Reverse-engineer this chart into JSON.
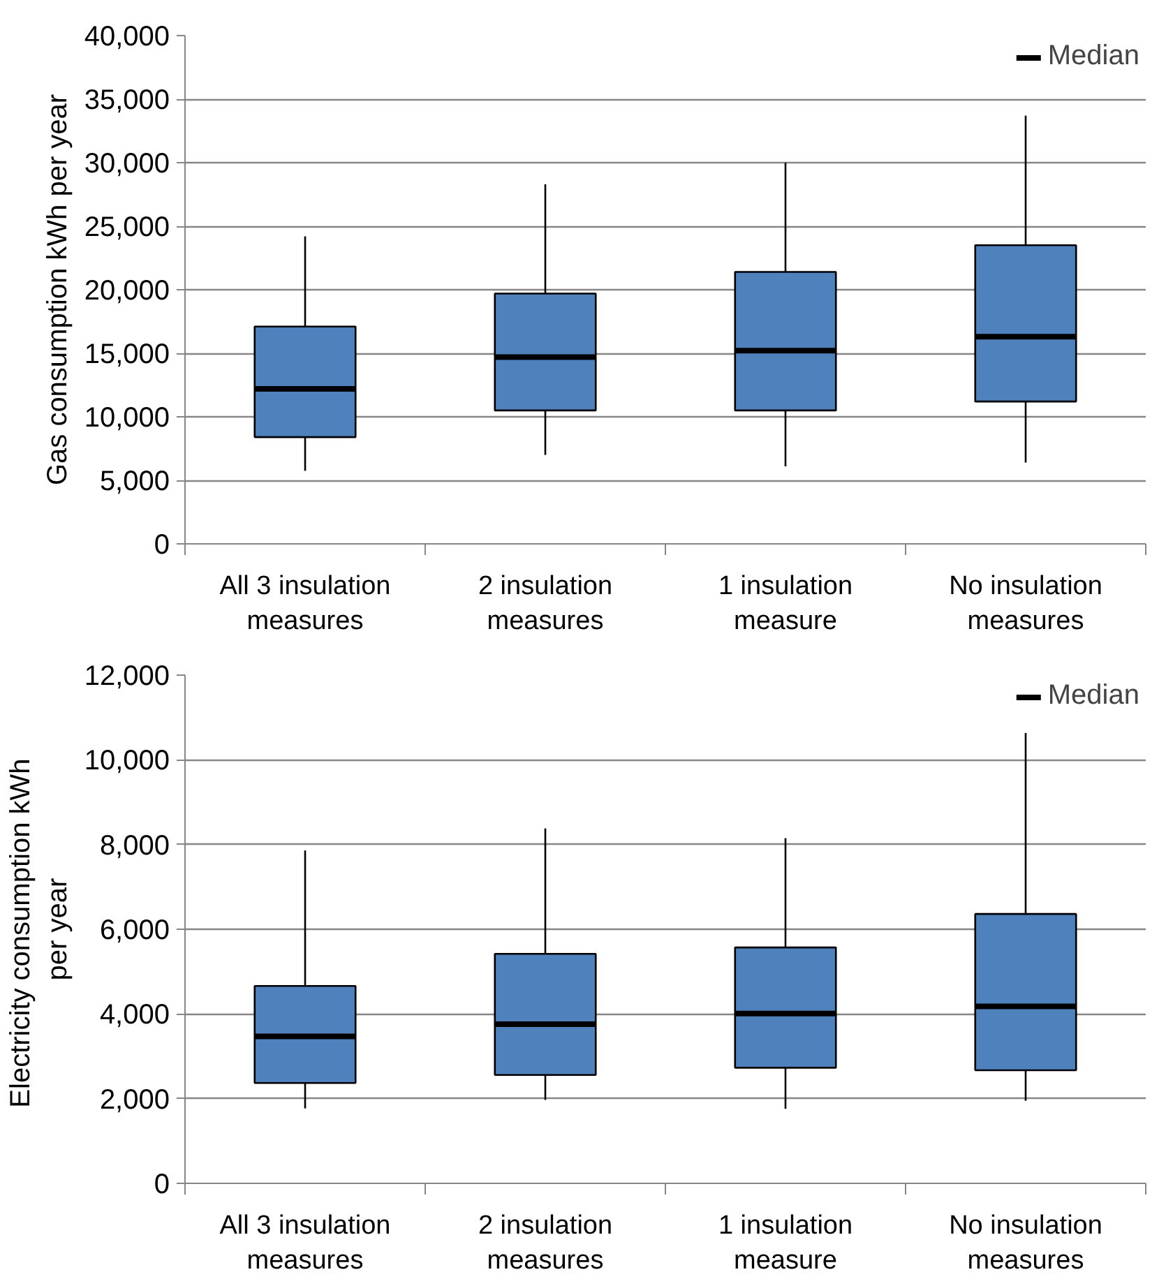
{
  "chart_data": [
    {
      "type": "box",
      "ylabel": "Gas consumption kWh per year",
      "categories": [
        "All 3 insulation measures",
        "2 insulation measures",
        "1 insulation measure",
        "No insulation measures"
      ],
      "colors": [
        "#4f81bd",
        "#4f81bd",
        "#4f81bd",
        "#4f81bd"
      ],
      "series": [
        {
          "name": "Median",
          "color": "#000000",
          "boxes": [
            {
              "low": 5750,
              "q1": 8400,
              "median": 12200,
              "q3": 17100,
              "high": 24200
            },
            {
              "low": 7000,
              "q1": 10500,
              "median": 14700,
              "q3": 19700,
              "high": 28300
            },
            {
              "low": 6100,
              "q1": 10500,
              "median": 15200,
              "q3": 21400,
              "high": 30000
            },
            {
              "low": 6400,
              "q1": 11200,
              "median": 16300,
              "q3": 23500,
              "high": 33700
            }
          ]
        }
      ],
      "ylim": [
        0,
        40000
      ],
      "yticks": [
        0,
        {
          "value": 5000,
          "label": "5,000"
        },
        {
          "value": 10000,
          "label": "10,000"
        },
        {
          "value": 15000,
          "label": "15,000"
        },
        {
          "value": 20000,
          "label": "20,000"
        },
        {
          "value": 25000,
          "label": "25,000"
        },
        {
          "value": 30000,
          "label": "30,000"
        },
        {
          "value": 35000,
          "label": "35,000"
        },
        {
          "value": 40000,
          "label": "40,000"
        }
      ],
      "grid": "y",
      "legend": "top right"
    },
    {
      "type": "box",
      "ylabel": "Electricity  consumption kWh per year",
      "categories": [
        "All 3 insulation measures",
        "2 insulation measures",
        "1 insulation measure",
        "No insulation measures"
      ],
      "colors": [
        "#4f81bd",
        "#4f81bd",
        "#4f81bd",
        "#4f81bd"
      ],
      "series": [
        {
          "name": "Median",
          "color": "#000000",
          "boxes": [
            {
              "low": 1770,
              "q1": 2370,
              "median": 3470,
              "q3": 4660,
              "high": 7860
            },
            {
              "low": 1970,
              "q1": 2560,
              "median": 3760,
              "q3": 5420,
              "high": 8380
            },
            {
              "low": 1760,
              "q1": 2730,
              "median": 4010,
              "q3": 5570,
              "high": 8150
            },
            {
              "low": 1950,
              "q1": 2670,
              "median": 4180,
              "q3": 6360,
              "high": 10630
            }
          ]
        }
      ],
      "ylim": [
        0,
        12000
      ],
      "yticks": [
        0,
        {
          "value": 2000,
          "label": "2,000"
        },
        {
          "value": 4000,
          "label": "4,000"
        },
        {
          "value": 6000,
          "label": "6,000"
        },
        {
          "value": 8000,
          "label": "8,000"
        },
        {
          "value": 10000,
          "label": "10,000"
        },
        {
          "value": 12000,
          "label": "12,000"
        }
      ],
      "grid": "y",
      "legend": "top right"
    }
  ]
}
